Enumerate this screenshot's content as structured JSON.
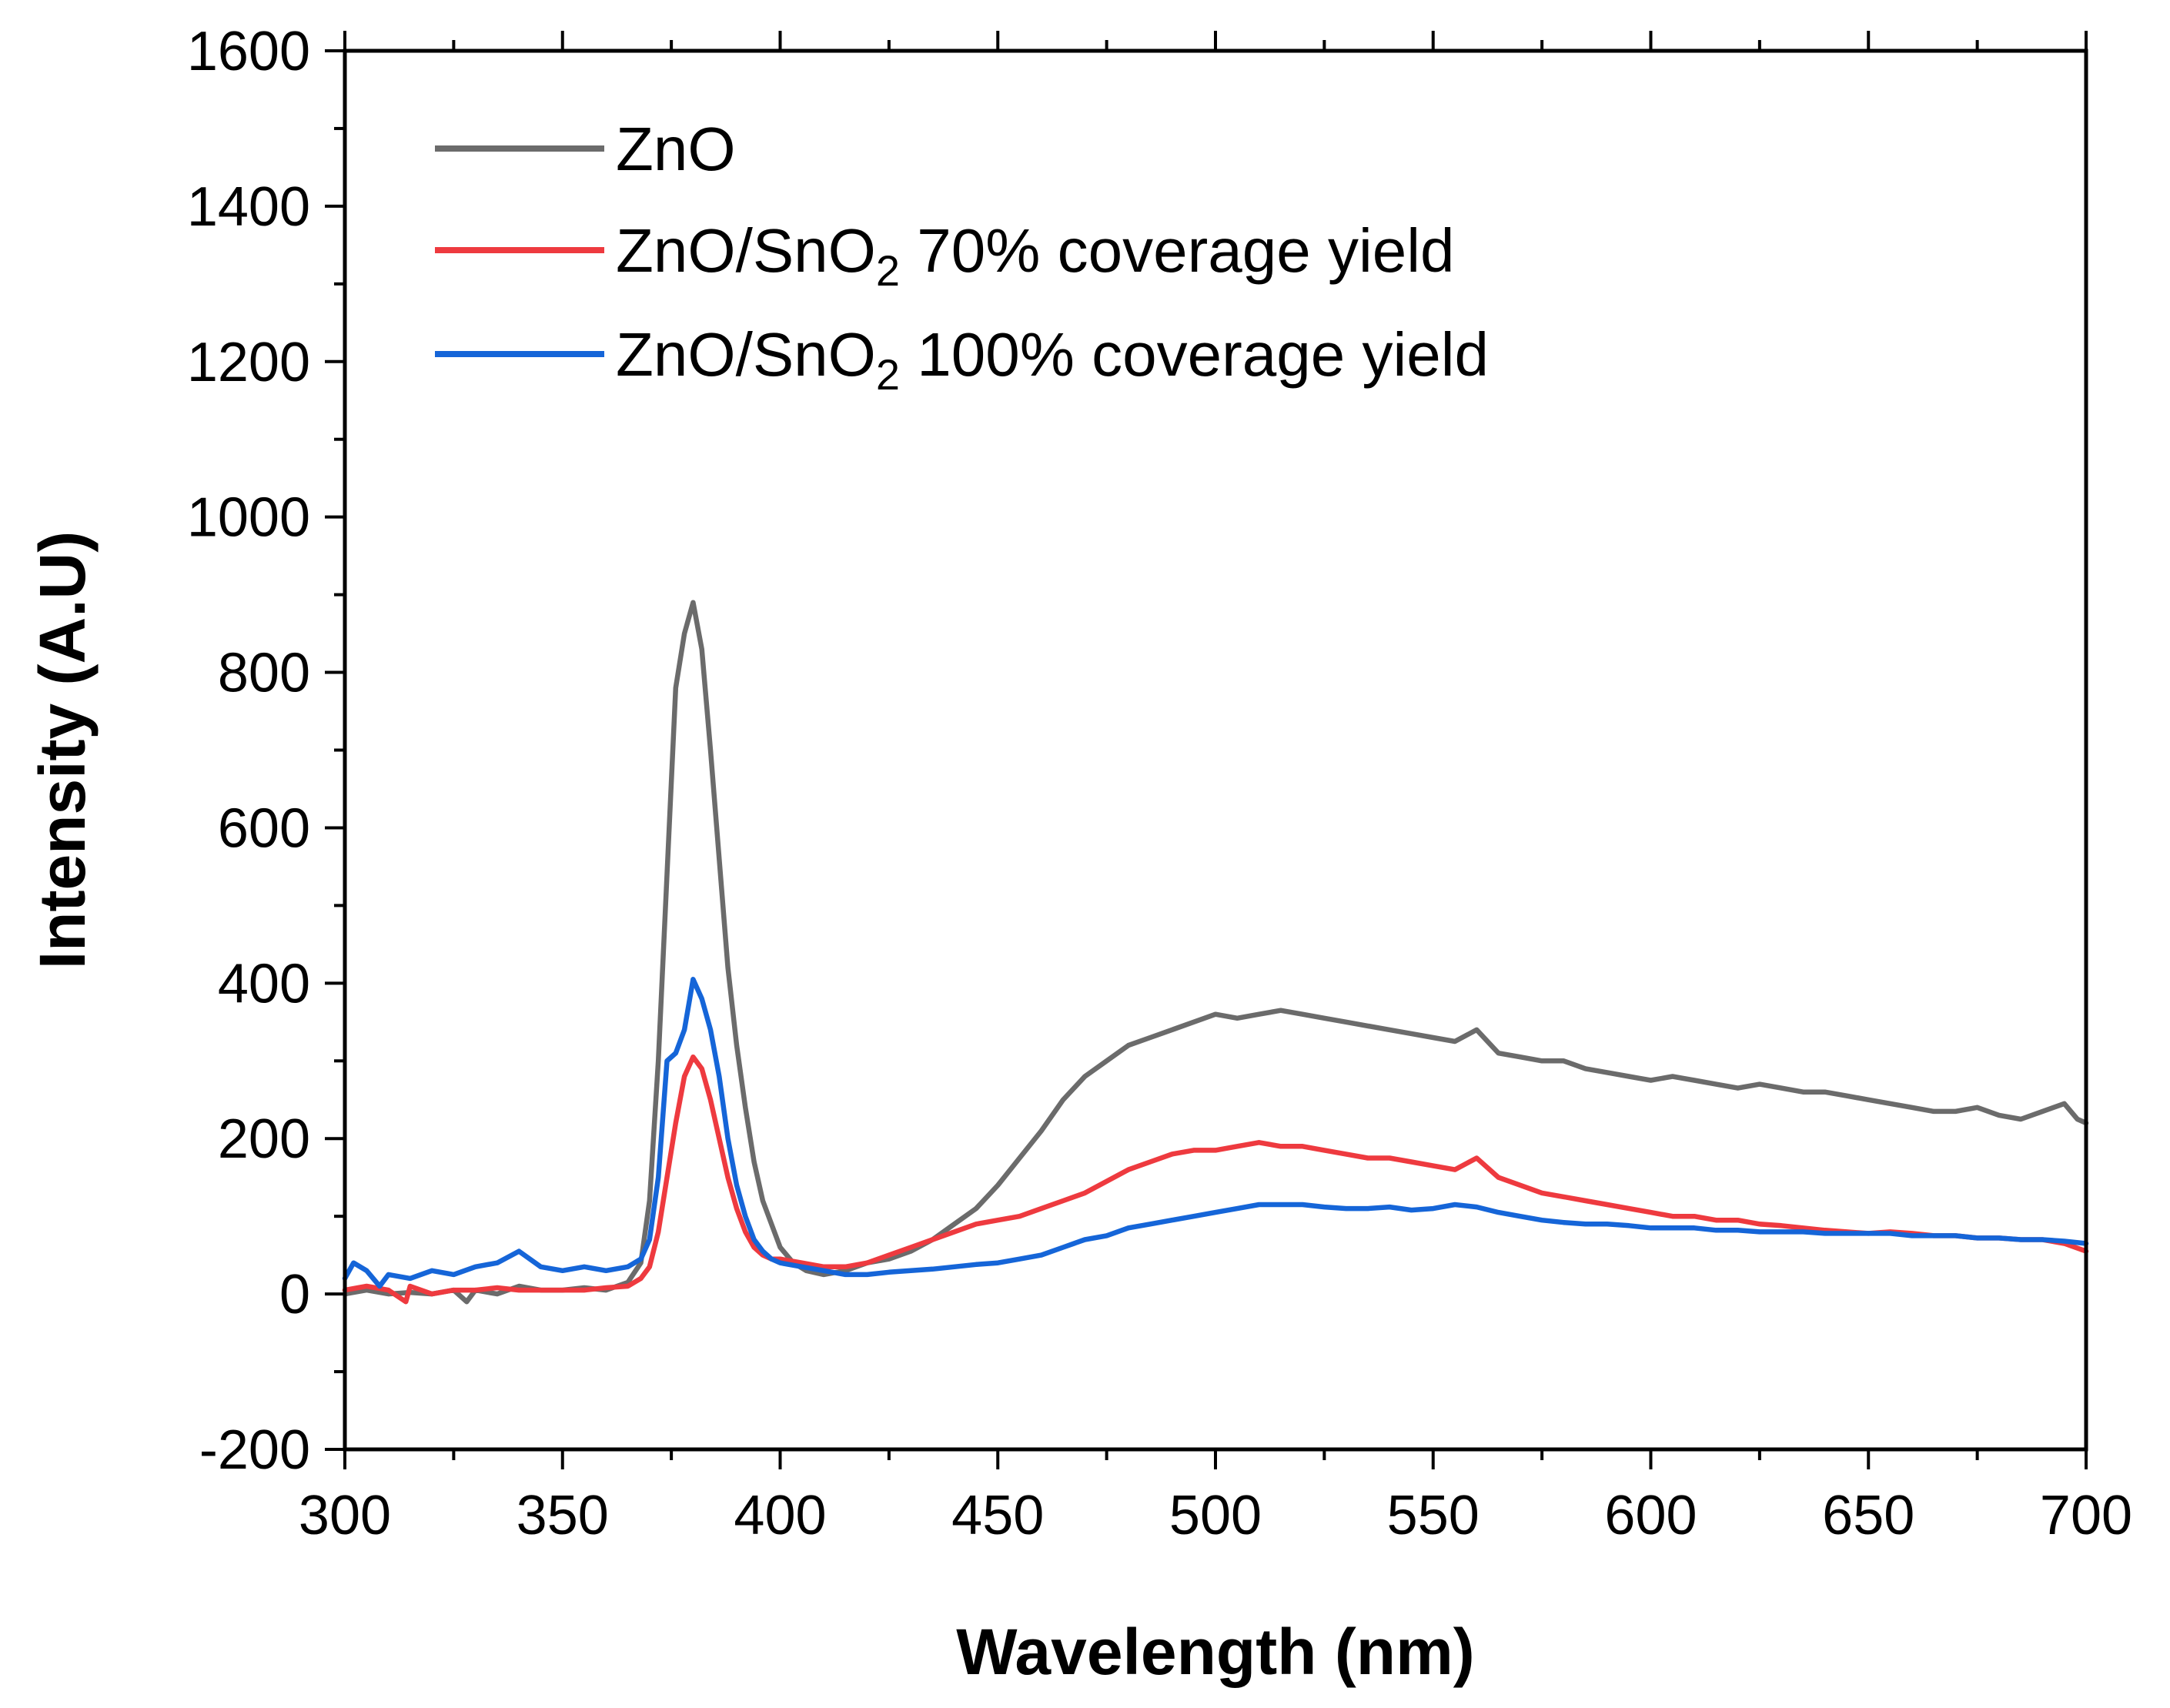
{
  "chart_data": {
    "type": "line",
    "title": "",
    "xlabel": "Wavelength (nm)",
    "ylabel": "Intensity (A.U)",
    "xlim": [
      300,
      700
    ],
    "ylim": [
      -200,
      1600
    ],
    "xticks": [
      300,
      350,
      400,
      450,
      500,
      550,
      600,
      650,
      700
    ],
    "yticks": [
      -200,
      0,
      200,
      400,
      600,
      800,
      1000,
      1200,
      1400,
      1600
    ],
    "xtick_labels": [
      "300",
      "350",
      "400",
      "450",
      "500",
      "550",
      "600",
      "650",
      "700"
    ],
    "ytick_labels": [
      "-200",
      "0",
      "200",
      "400",
      "600",
      "800",
      "1000",
      "1200",
      "1400",
      "1600"
    ],
    "grid": false,
    "legend_position": "top-left",
    "series": [
      {
        "name": "ZnO",
        "legend_label": {
          "main": "ZnO",
          "sub": "",
          "rest": ""
        },
        "color": "#6b6b6b",
        "x": [
          300,
          305,
          310,
          315,
          320,
          325,
          328,
          330,
          335,
          340,
          345,
          350,
          355,
          360,
          365,
          368,
          370,
          372,
          374,
          376,
          378,
          380,
          382,
          384,
          386,
          388,
          390,
          392,
          394,
          396,
          398,
          400,
          403,
          406,
          410,
          415,
          420,
          425,
          430,
          435,
          440,
          445,
          450,
          455,
          460,
          465,
          470,
          475,
          480,
          485,
          490,
          495,
          500,
          505,
          510,
          515,
          520,
          525,
          530,
          535,
          540,
          545,
          550,
          555,
          560,
          565,
          570,
          575,
          580,
          585,
          590,
          595,
          600,
          605,
          610,
          615,
          620,
          625,
          630,
          635,
          640,
          645,
          650,
          655,
          660,
          665,
          670,
          675,
          680,
          685,
          690,
          695,
          698,
          700
        ],
        "y": [
          0,
          5,
          0,
          2,
          0,
          5,
          -10,
          5,
          0,
          10,
          5,
          5,
          8,
          5,
          15,
          40,
          120,
          300,
          540,
          780,
          850,
          890,
          830,
          700,
          560,
          420,
          320,
          240,
          170,
          120,
          90,
          60,
          40,
          30,
          25,
          30,
          40,
          45,
          55,
          70,
          90,
          110,
          140,
          175,
          210,
          250,
          280,
          300,
          320,
          330,
          340,
          350,
          360,
          355,
          360,
          365,
          360,
          355,
          350,
          345,
          340,
          335,
          330,
          325,
          340,
          310,
          305,
          300,
          300,
          290,
          285,
          280,
          275,
          280,
          275,
          270,
          265,
          270,
          265,
          260,
          260,
          255,
          250,
          245,
          240,
          235,
          235,
          240,
          230,
          225,
          235,
          245,
          225,
          220
        ]
      },
      {
        "name": "ZnO/SnO2 70% coverage yield",
        "legend_label": {
          "main": "ZnO/SnO",
          "sub": "2",
          "rest": " 70% coverage yield"
        },
        "color": "#ee3a3f",
        "x": [
          300,
          305,
          310,
          314,
          315,
          320,
          325,
          330,
          335,
          340,
          345,
          350,
          355,
          360,
          365,
          368,
          370,
          372,
          374,
          376,
          378,
          380,
          382,
          384,
          386,
          388,
          390,
          392,
          394,
          396,
          398,
          400,
          405,
          410,
          415,
          420,
          425,
          430,
          435,
          440,
          445,
          450,
          455,
          460,
          465,
          470,
          475,
          480,
          485,
          490,
          495,
          500,
          505,
          510,
          515,
          520,
          525,
          530,
          535,
          540,
          545,
          550,
          555,
          560,
          565,
          570,
          575,
          580,
          585,
          590,
          595,
          600,
          605,
          610,
          615,
          620,
          625,
          630,
          635,
          640,
          645,
          650,
          655,
          660,
          665,
          670,
          675,
          680,
          685,
          690,
          695,
          700
        ],
        "y": [
          5,
          10,
          5,
          -10,
          10,
          0,
          5,
          5,
          8,
          5,
          5,
          5,
          5,
          8,
          10,
          20,
          35,
          80,
          150,
          220,
          280,
          305,
          290,
          250,
          200,
          150,
          110,
          80,
          60,
          50,
          45,
          45,
          40,
          35,
          35,
          40,
          50,
          60,
          70,
          80,
          90,
          95,
          100,
          110,
          120,
          130,
          145,
          160,
          170,
          180,
          185,
          185,
          190,
          195,
          190,
          190,
          185,
          180,
          175,
          175,
          170,
          165,
          160,
          175,
          150,
          140,
          130,
          125,
          120,
          115,
          110,
          105,
          100,
          100,
          95,
          95,
          90,
          88,
          85,
          82,
          80,
          78,
          80,
          78,
          75,
          75,
          72,
          72,
          70,
          70,
          65,
          55
        ]
      },
      {
        "name": "ZnO/SnO2 100% coverage yield",
        "legend_label": {
          "main": "ZnO/SnO",
          "sub": "2",
          "rest": " 100% coverage yield"
        },
        "color": "#1565d8",
        "x": [
          300,
          302,
          305,
          308,
          310,
          315,
          320,
          325,
          330,
          335,
          340,
          345,
          350,
          355,
          360,
          365,
          368,
          370,
          372,
          374,
          376,
          378,
          380,
          382,
          384,
          386,
          388,
          390,
          392,
          394,
          396,
          398,
          400,
          405,
          410,
          415,
          420,
          425,
          430,
          435,
          440,
          445,
          450,
          455,
          460,
          465,
          470,
          475,
          480,
          485,
          490,
          495,
          500,
          505,
          510,
          515,
          520,
          525,
          530,
          535,
          540,
          545,
          550,
          555,
          560,
          565,
          570,
          575,
          580,
          585,
          590,
          595,
          600,
          605,
          610,
          615,
          620,
          625,
          630,
          635,
          640,
          645,
          650,
          655,
          660,
          665,
          670,
          675,
          680,
          685,
          690,
          695,
          700
        ],
        "y": [
          20,
          40,
          30,
          10,
          25,
          20,
          30,
          25,
          35,
          40,
          55,
          35,
          30,
          35,
          30,
          35,
          45,
          70,
          150,
          300,
          310,
          340,
          405,
          380,
          340,
          280,
          200,
          140,
          100,
          70,
          55,
          45,
          40,
          35,
          30,
          25,
          25,
          28,
          30,
          32,
          35,
          38,
          40,
          45,
          50,
          60,
          70,
          75,
          85,
          90,
          95,
          100,
          105,
          110,
          115,
          115,
          115,
          112,
          110,
          110,
          112,
          108,
          110,
          115,
          112,
          105,
          100,
          95,
          92,
          90,
          90,
          88,
          85,
          85,
          85,
          82,
          82,
          80,
          80,
          80,
          78,
          78,
          78,
          78,
          75,
          75,
          75,
          72,
          72,
          70,
          70,
          68,
          65
        ]
      }
    ]
  }
}
